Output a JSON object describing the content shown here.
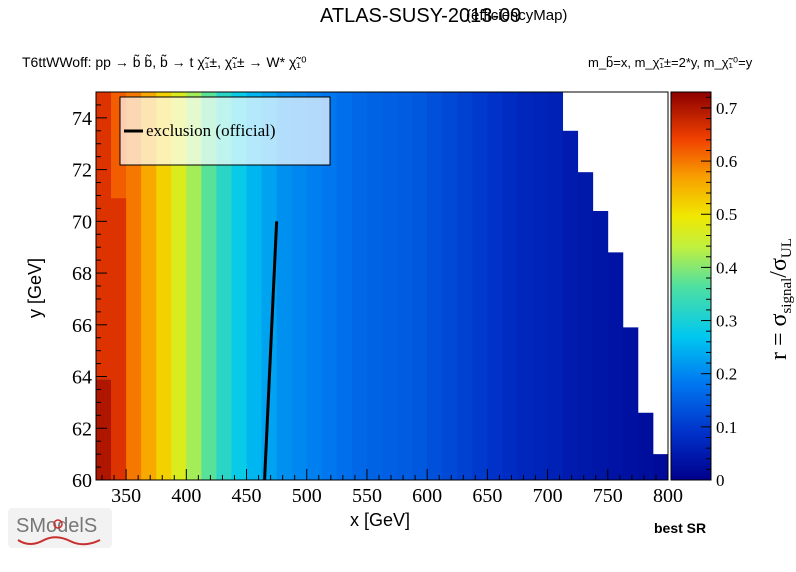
{
  "page": {
    "title": "ATLAS-SUSY-2013-09",
    "title_tag": "(efficiencyMap)",
    "process": "T6ttWWoff: pp  → b̃ b̃, b̃  → t χ̃₁±, χ̃₁± → W* χ̃₁⁰",
    "mass_relation": "m_b̃=x, m_χ̃₁±=2*y, m_χ̃₁⁰=y",
    "best_sr": "best SR",
    "logo_text": "SModelS"
  },
  "chart_data": {
    "type": "heatmap",
    "xlabel": "x [GeV]",
    "ylabel": "y [GeV]",
    "zlabel": "r = σsignal/σUL",
    "xlim": [
      325,
      800
    ],
    "ylim": [
      60,
      75
    ],
    "zlim": [
      0,
      0.73
    ],
    "xticks": [
      350,
      400,
      450,
      500,
      550,
      600,
      650,
      700,
      750,
      800
    ],
    "yticks": [
      60,
      62,
      64,
      66,
      68,
      70,
      72,
      74
    ],
    "zticks": [
      0,
      0.1,
      0.2,
      0.3,
      0.4,
      0.5,
      0.6,
      0.7
    ],
    "grid": false,
    "legend_position": "top-left",
    "legend": [
      "exclusion (official)"
    ],
    "columns": [
      {
        "x0": 325,
        "x1": 337.5,
        "r": 0.7,
        "ymin": 60,
        "ymax": 63.9
      },
      {
        "x0": 325,
        "x1": 337.5,
        "r": 0.66,
        "ymin": 63.9,
        "ymax": 75
      },
      {
        "x0": 337.5,
        "x1": 350,
        "r": 0.66,
        "ymin": 60,
        "ymax": 70.9
      },
      {
        "x0": 337.5,
        "x1": 350,
        "r": 0.62,
        "ymin": 70.9,
        "ymax": 75
      },
      {
        "x0": 350,
        "x1": 362.5,
        "r": 0.6,
        "ymin": 60,
        "ymax": 75
      },
      {
        "x0": 362.5,
        "x1": 375,
        "r": 0.56,
        "ymin": 60,
        "ymax": 75
      },
      {
        "x0": 375,
        "x1": 387.5,
        "r": 0.52,
        "ymin": 60,
        "ymax": 75
      },
      {
        "x0": 387.5,
        "x1": 400,
        "r": 0.47,
        "ymin": 60,
        "ymax": 75
      },
      {
        "x0": 400,
        "x1": 412.5,
        "r": 0.42,
        "ymin": 60,
        "ymax": 75
      },
      {
        "x0": 412.5,
        "x1": 425,
        "r": 0.37,
        "ymin": 60,
        "ymax": 75
      },
      {
        "x0": 425,
        "x1": 437.5,
        "r": 0.32,
        "ymin": 60,
        "ymax": 75
      },
      {
        "x0": 437.5,
        "x1": 450,
        "r": 0.28,
        "ymin": 60,
        "ymax": 75
      },
      {
        "x0": 450,
        "x1": 462.5,
        "r": 0.25,
        "ymin": 60,
        "ymax": 75
      },
      {
        "x0": 462.5,
        "x1": 475,
        "r": 0.23,
        "ymin": 60,
        "ymax": 75
      },
      {
        "x0": 475,
        "x1": 487.5,
        "r": 0.21,
        "ymin": 60,
        "ymax": 75
      },
      {
        "x0": 487.5,
        "x1": 500,
        "r": 0.2,
        "ymin": 60,
        "ymax": 75
      },
      {
        "x0": 500,
        "x1": 512.5,
        "r": 0.19,
        "ymin": 60,
        "ymax": 75
      },
      {
        "x0": 512.5,
        "x1": 525,
        "r": 0.18,
        "ymin": 60,
        "ymax": 75
      },
      {
        "x0": 525,
        "x1": 537.5,
        "r": 0.17,
        "ymin": 60,
        "ymax": 75
      },
      {
        "x0": 537.5,
        "x1": 550,
        "r": 0.16,
        "ymin": 60,
        "ymax": 75
      },
      {
        "x0": 550,
        "x1": 562.5,
        "r": 0.155,
        "ymin": 60,
        "ymax": 75
      },
      {
        "x0": 562.5,
        "x1": 575,
        "r": 0.15,
        "ymin": 60,
        "ymax": 75
      },
      {
        "x0": 575,
        "x1": 587.5,
        "r": 0.145,
        "ymin": 60,
        "ymax": 75
      },
      {
        "x0": 587.5,
        "x1": 600,
        "r": 0.14,
        "ymin": 60,
        "ymax": 75
      },
      {
        "x0": 600,
        "x1": 612.5,
        "r": 0.13,
        "ymin": 60,
        "ymax": 75
      },
      {
        "x0": 612.5,
        "x1": 625,
        "r": 0.12,
        "ymin": 60,
        "ymax": 75
      },
      {
        "x0": 625,
        "x1": 637.5,
        "r": 0.11,
        "ymin": 60,
        "ymax": 75
      },
      {
        "x0": 637.5,
        "x1": 650,
        "r": 0.1,
        "ymin": 60,
        "ymax": 75
      },
      {
        "x0": 650,
        "x1": 662.5,
        "r": 0.09,
        "ymin": 60,
        "ymax": 75
      },
      {
        "x0": 662.5,
        "x1": 675,
        "r": 0.08,
        "ymin": 60,
        "ymax": 75
      },
      {
        "x0": 675,
        "x1": 687.5,
        "r": 0.07,
        "ymin": 60,
        "ymax": 75
      },
      {
        "x0": 687.5,
        "x1": 700,
        "r": 0.065,
        "ymin": 60,
        "ymax": 75
      },
      {
        "x0": 700,
        "x1": 712.5,
        "r": 0.06,
        "ymin": 60,
        "ymax": 75
      },
      {
        "x0": 712.5,
        "x1": 725,
        "r": 0.05,
        "ymin": 60,
        "ymax": 73.5
      },
      {
        "x0": 725,
        "x1": 737.5,
        "r": 0.045,
        "ymin": 60,
        "ymax": 71.9
      },
      {
        "x0": 737.5,
        "x1": 750,
        "r": 0.04,
        "ymin": 60,
        "ymax": 70.4
      },
      {
        "x0": 750,
        "x1": 762.5,
        "r": 0.035,
        "ymin": 60,
        "ymax": 68.8
      },
      {
        "x0": 762.5,
        "x1": 775,
        "r": 0.03,
        "ymin": 60,
        "ymax": 65.9
      },
      {
        "x0": 775,
        "x1": 787.5,
        "r": 0.025,
        "ymin": 60,
        "ymax": 62.6
      },
      {
        "x0": 787.5,
        "x1": 800,
        "r": 0.02,
        "ymin": 60,
        "ymax": 61.0
      }
    ],
    "exclusion_line": {
      "name": "exclusion (official)",
      "x": [
        465,
        475
      ],
      "y": [
        60,
        70
      ]
    }
  }
}
